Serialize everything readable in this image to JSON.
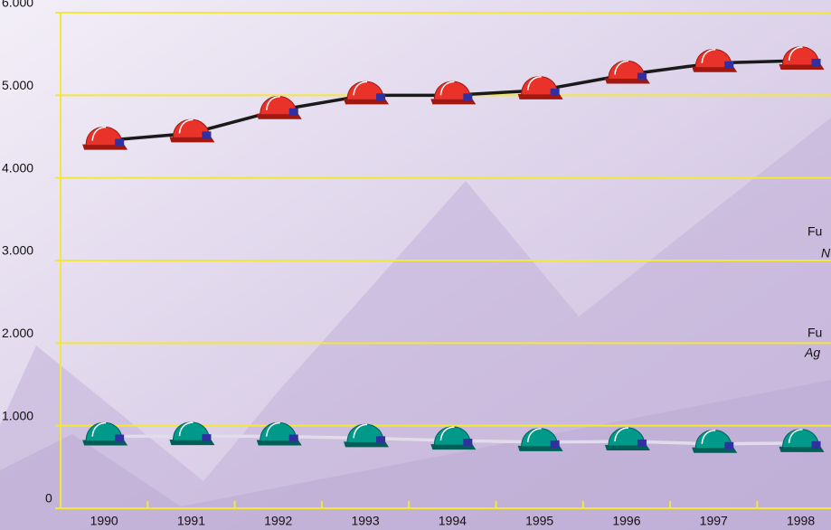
{
  "chart_data": {
    "type": "line",
    "categories": [
      "1990",
      "1991",
      "1992",
      "1993",
      "1994",
      "1995",
      "1996",
      "1997",
      "1998"
    ],
    "series": [
      {
        "color": "#e8322a",
        "values": [
          4450,
          4540,
          4820,
          5000,
          5000,
          5060,
          5250,
          5390,
          5420
        ]
      },
      {
        "color": "#00998a",
        "values": [
          870,
          875,
          870,
          850,
          820,
          800,
          810,
          780,
          790
        ]
      }
    ],
    "ylim": [
      0,
      6000
    ],
    "yticks": [
      0,
      {
        "value": 1000,
        "label": "1.000"
      },
      {
        "value": 2000,
        "label": "2.000"
      },
      {
        "value": 3000,
        "label": "3.000"
      },
      {
        "value": 4000,
        "label": "4.000"
      },
      {
        "value": 5000,
        "label": "5.000"
      },
      {
        "value": 6000,
        "label": "6.000"
      }
    ],
    "grid": true,
    "annotations": [
      "Fu",
      "N",
      "Fu",
      "Ag"
    ]
  }
}
